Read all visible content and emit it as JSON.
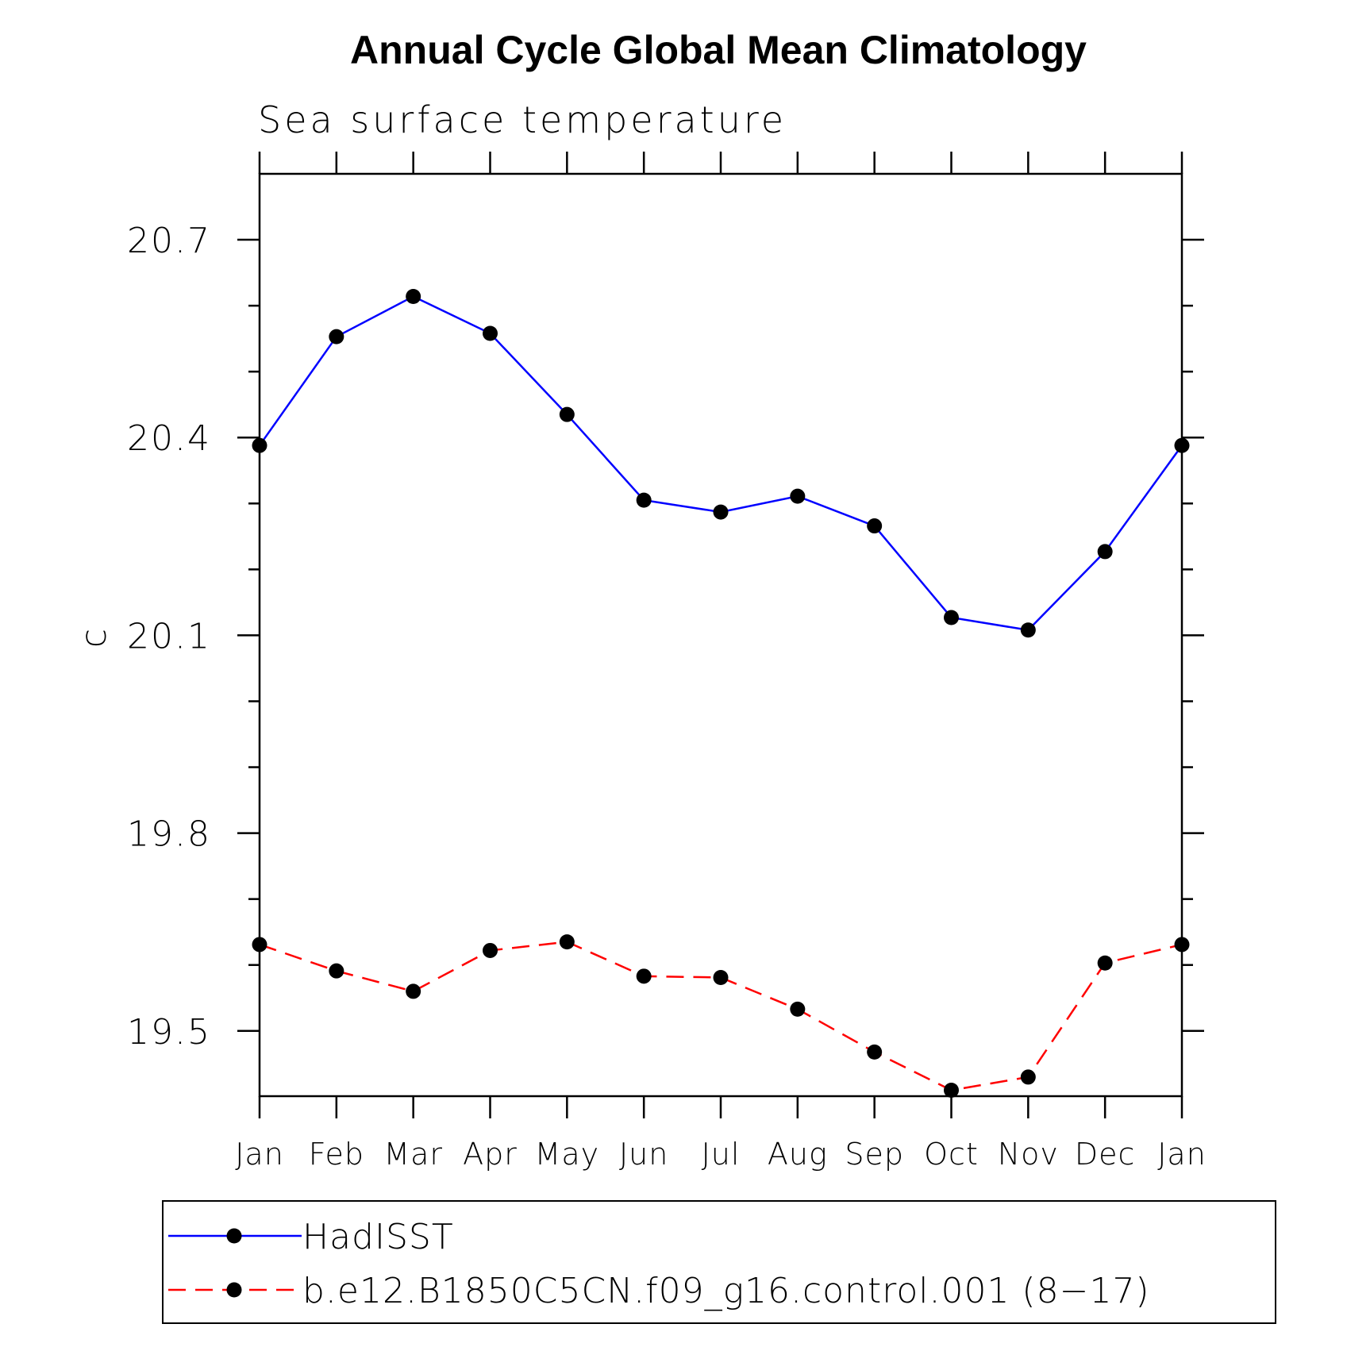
{
  "chart_data": {
    "type": "line",
    "title": "Annual Cycle Global Mean Climatology",
    "subtitle": "Sea surface temperature",
    "ylabel": "c",
    "xlabel": "",
    "categories": [
      "Jan",
      "Feb",
      "Mar",
      "Apr",
      "May",
      "Jun",
      "Jul",
      "Aug",
      "Sep",
      "Oct",
      "Nov",
      "Dec",
      "Jan"
    ],
    "ylim": [
      19.401,
      20.8
    ],
    "yticks": [
      19.5,
      19.8,
      20.1,
      20.4,
      20.7
    ],
    "ytick_labels": [
      "19.5",
      "19.8",
      "20.1",
      "20.4",
      "20.7"
    ],
    "yminor": [
      19.6,
      19.7,
      19.9,
      20.0,
      20.2,
      20.3,
      20.5,
      20.6
    ],
    "grid": false,
    "legend_position": "bottom",
    "series": [
      {
        "name": "HadISST",
        "color": "#0000ff",
        "dash": "solid",
        "marker": "filled-circle",
        "values": [
          20.388,
          20.553,
          20.614,
          20.558,
          20.435,
          20.305,
          20.287,
          20.311,
          20.266,
          20.127,
          20.108,
          20.227,
          20.388
        ]
      },
      {
        "name": "b.e12.B1850C5CN.f09_g16.control.001 (8−17)",
        "color": "#ff0000",
        "dash": "dashed",
        "marker": "filled-circle",
        "values": [
          19.631,
          19.591,
          19.56,
          19.622,
          19.635,
          19.583,
          19.581,
          19.533,
          19.468,
          19.41,
          19.43,
          19.603,
          19.631
        ]
      }
    ]
  }
}
